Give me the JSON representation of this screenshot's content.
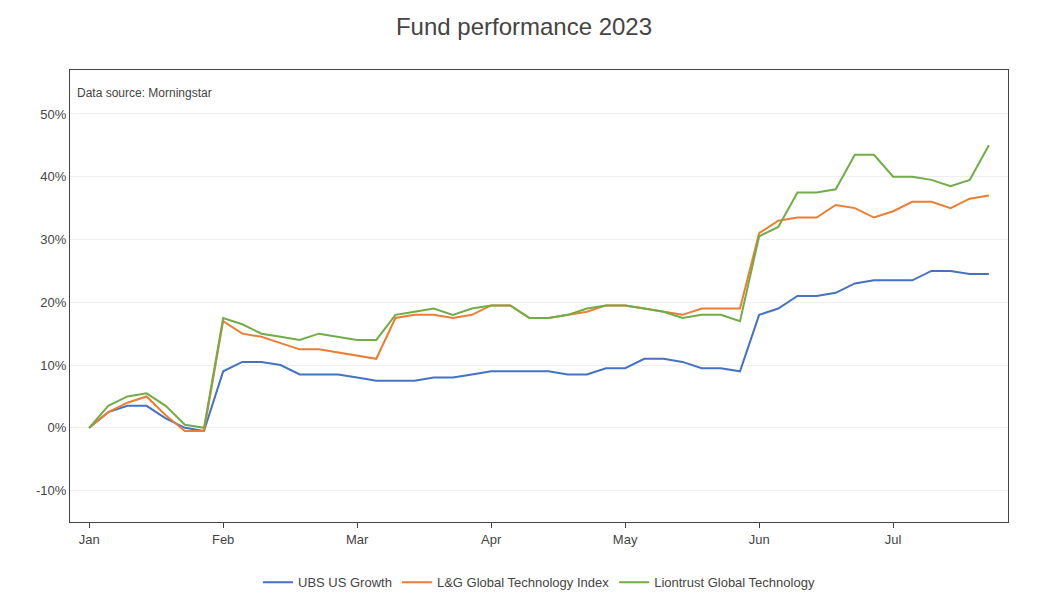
{
  "chart_data": {
    "type": "line",
    "title": "Fund performance 2023",
    "subtitle": "Data source: Morningstar",
    "x": [
      0,
      1,
      2,
      3,
      4,
      5,
      6,
      7,
      8,
      9,
      10,
      11,
      12,
      13,
      14,
      15,
      16,
      17,
      18,
      19,
      20,
      21,
      22,
      23,
      24,
      25,
      26,
      27,
      28,
      29,
      30,
      31,
      32,
      33,
      34,
      35,
      36,
      37,
      38,
      39,
      40,
      41,
      42,
      43,
      44,
      45,
      46,
      47
    ],
    "series": [
      {
        "name": "UBS US Growth",
        "color": "#4472c4",
        "values": [
          0.0,
          2.5,
          3.5,
          3.5,
          1.5,
          0.0,
          -0.5,
          9.0,
          10.5,
          10.5,
          10.0,
          8.5,
          8.5,
          8.5,
          8.0,
          7.5,
          7.5,
          7.5,
          8.0,
          8.0,
          8.5,
          9.0,
          9.0,
          9.0,
          9.0,
          8.5,
          8.5,
          9.5,
          9.5,
          11.0,
          11.0,
          10.5,
          9.5,
          9.5,
          9.0,
          18.0,
          19.0,
          21.0,
          21.0,
          21.5,
          23.0,
          23.5,
          23.5,
          23.5,
          25.0,
          25.0,
          24.5,
          24.5
        ]
      },
      {
        "name": "L&G Global Technology Index",
        "color": "#ed7d31",
        "values": [
          0.0,
          2.5,
          4.0,
          5.0,
          2.0,
          -0.5,
          -0.5,
          17.0,
          15.0,
          14.5,
          13.5,
          12.5,
          12.5,
          12.0,
          11.5,
          11.0,
          17.5,
          18.0,
          18.0,
          17.5,
          18.0,
          19.5,
          19.5,
          17.5,
          17.5,
          18.0,
          18.5,
          19.5,
          19.5,
          19.0,
          18.5,
          18.0,
          19.0,
          19.0,
          19.0,
          31.0,
          33.0,
          33.5,
          33.5,
          35.5,
          35.0,
          33.5,
          34.5,
          36.0,
          36.0,
          35.0,
          36.5,
          37.0
        ]
      },
      {
        "name": "Liontrust Global Technology",
        "color": "#70ad47",
        "values": [
          0.0,
          3.5,
          5.0,
          5.5,
          3.5,
          0.5,
          0.0,
          17.5,
          16.5,
          15.0,
          14.5,
          14.0,
          15.0,
          14.5,
          14.0,
          14.0,
          18.0,
          18.5,
          19.0,
          18.0,
          19.0,
          19.5,
          19.5,
          17.5,
          17.5,
          18.0,
          19.0,
          19.5,
          19.5,
          19.0,
          18.5,
          17.5,
          18.0,
          18.0,
          17.0,
          30.5,
          32.0,
          37.5,
          37.5,
          38.0,
          43.5,
          43.5,
          40.0,
          40.0,
          39.5,
          38.5,
          39.5,
          45.0
        ]
      }
    ],
    "xlim": [
      -1,
      48
    ],
    "xticks": [
      {
        "value": 0,
        "label": "Jan"
      },
      {
        "value": 7,
        "label": "Feb"
      },
      {
        "value": 14,
        "label": "Mar"
      },
      {
        "value": 21,
        "label": "Apr"
      },
      {
        "value": 28,
        "label": "May"
      },
      {
        "value": 35,
        "label": "Jun"
      },
      {
        "value": 42,
        "label": "Jul"
      }
    ],
    "ylim": [
      -15,
      57
    ],
    "yticks": [
      {
        "value": -10,
        "label": "-10%"
      },
      {
        "value": 0,
        "label": "0%"
      },
      {
        "value": 10,
        "label": "10%"
      },
      {
        "value": 20,
        "label": "20%"
      },
      {
        "value": 30,
        "label": "30%"
      },
      {
        "value": 40,
        "label": "40%"
      },
      {
        "value": 50,
        "label": "50%"
      }
    ],
    "grid": "y",
    "legend": "bottom"
  }
}
